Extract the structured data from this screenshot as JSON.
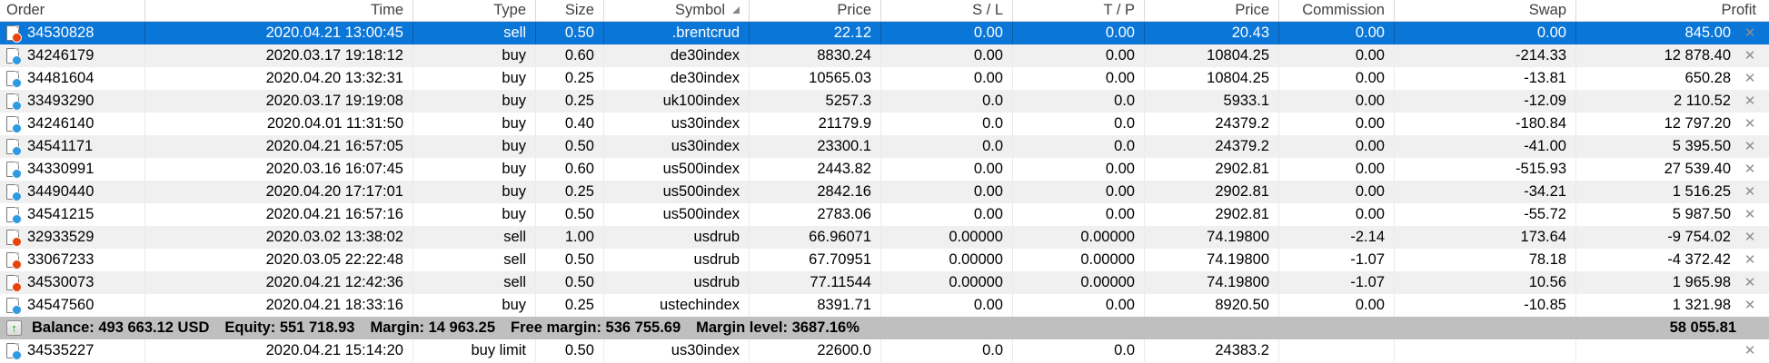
{
  "colors": {
    "selected_row_bg": "#0a76d8",
    "selected_row_text": "#ffffff",
    "alt_row_bg": "#f0f0f0",
    "balance_row_bg": "#bfbfbf",
    "buy_icon_dot": "#2e9ae2",
    "sell_icon_dot": "#e8430b",
    "close_icon": "#8f8f8f"
  },
  "header": {
    "columns": [
      {
        "id": "order",
        "label": "Order"
      },
      {
        "id": "time",
        "label": "Time"
      },
      {
        "id": "type",
        "label": "Type"
      },
      {
        "id": "size",
        "label": "Size"
      },
      {
        "id": "symbol",
        "label": "Symbol",
        "sort": "asc"
      },
      {
        "id": "price_open",
        "label": "Price"
      },
      {
        "id": "sl",
        "label": "S / L"
      },
      {
        "id": "tp",
        "label": "T / P"
      },
      {
        "id": "price_current",
        "label": "Price"
      },
      {
        "id": "commission",
        "label": "Commission"
      },
      {
        "id": "swap",
        "label": "Swap"
      },
      {
        "id": "profit",
        "label": "Profit"
      }
    ]
  },
  "close_glyph": "✕",
  "deposit_glyph": "↑",
  "rows": [
    {
      "order": "34530828",
      "time": "2020.04.21 13:00:45",
      "type": "sell",
      "size": "0.50",
      "symbol": ".brentcrud",
      "price_open": "22.12",
      "sl": "0.00",
      "tp": "0.00",
      "price_current": "20.43",
      "commission": "0.00",
      "swap": "0.00",
      "profit": "845.00",
      "icon": "sell",
      "selected": true
    },
    {
      "order": "34246179",
      "time": "2020.03.17 19:18:12",
      "type": "buy",
      "size": "0.60",
      "symbol": "de30index",
      "price_open": "8830.24",
      "sl": "0.00",
      "tp": "0.00",
      "price_current": "10804.25",
      "commission": "0.00",
      "swap": "-214.33",
      "profit": "12 878.40",
      "icon": "buy",
      "selected": false
    },
    {
      "order": "34481604",
      "time": "2020.04.20 13:32:31",
      "type": "buy",
      "size": "0.25",
      "symbol": "de30index",
      "price_open": "10565.03",
      "sl": "0.00",
      "tp": "0.00",
      "price_current": "10804.25",
      "commission": "0.00",
      "swap": "-13.81",
      "profit": "650.28",
      "icon": "buy",
      "selected": false
    },
    {
      "order": "33493290",
      "time": "2020.03.17 19:19:08",
      "type": "buy",
      "size": "0.25",
      "symbol": "uk100index",
      "price_open": "5257.3",
      "sl": "0.0",
      "tp": "0.0",
      "price_current": "5933.1",
      "commission": "0.00",
      "swap": "-12.09",
      "profit": "2 110.52",
      "icon": "buy",
      "selected": false
    },
    {
      "order": "34246140",
      "time": "2020.04.01 11:31:50",
      "type": "buy",
      "size": "0.40",
      "symbol": "us30index",
      "price_open": "21179.9",
      "sl": "0.0",
      "tp": "0.0",
      "price_current": "24379.2",
      "commission": "0.00",
      "swap": "-180.84",
      "profit": "12 797.20",
      "icon": "buy",
      "selected": false
    },
    {
      "order": "34541171",
      "time": "2020.04.21 16:57:05",
      "type": "buy",
      "size": "0.50",
      "symbol": "us30index",
      "price_open": "23300.1",
      "sl": "0.0",
      "tp": "0.0",
      "price_current": "24379.2",
      "commission": "0.00",
      "swap": "-41.00",
      "profit": "5 395.50",
      "icon": "buy",
      "selected": false
    },
    {
      "order": "34330991",
      "time": "2020.03.16 16:07:45",
      "type": "buy",
      "size": "0.60",
      "symbol": "us500index",
      "price_open": "2443.82",
      "sl": "0.00",
      "tp": "0.00",
      "price_current": "2902.81",
      "commission": "0.00",
      "swap": "-515.93",
      "profit": "27 539.40",
      "icon": "buy",
      "selected": false
    },
    {
      "order": "34490440",
      "time": "2020.04.20 17:17:01",
      "type": "buy",
      "size": "0.25",
      "symbol": "us500index",
      "price_open": "2842.16",
      "sl": "0.00",
      "tp": "0.00",
      "price_current": "2902.81",
      "commission": "0.00",
      "swap": "-34.21",
      "profit": "1 516.25",
      "icon": "buy",
      "selected": false
    },
    {
      "order": "34541215",
      "time": "2020.04.21 16:57:16",
      "type": "buy",
      "size": "0.50",
      "symbol": "us500index",
      "price_open": "2783.06",
      "sl": "0.00",
      "tp": "0.00",
      "price_current": "2902.81",
      "commission": "0.00",
      "swap": "-55.72",
      "profit": "5 987.50",
      "icon": "buy",
      "selected": false
    },
    {
      "order": "32933529",
      "time": "2020.03.02 13:38:02",
      "type": "sell",
      "size": "1.00",
      "symbol": "usdrub",
      "price_open": "66.96071",
      "sl": "0.00000",
      "tp": "0.00000",
      "price_current": "74.19800",
      "commission": "-2.14",
      "swap": "173.64",
      "profit": "-9 754.02",
      "icon": "sell",
      "selected": false
    },
    {
      "order": "33067233",
      "time": "2020.03.05 22:22:48",
      "type": "sell",
      "size": "0.50",
      "symbol": "usdrub",
      "price_open": "67.70951",
      "sl": "0.00000",
      "tp": "0.00000",
      "price_current": "74.19800",
      "commission": "-1.07",
      "swap": "78.18",
      "profit": "-4 372.42",
      "icon": "sell",
      "selected": false
    },
    {
      "order": "34530073",
      "time": "2020.04.21 12:42:36",
      "type": "sell",
      "size": "0.50",
      "symbol": "usdrub",
      "price_open": "77.11544",
      "sl": "0.00000",
      "tp": "0.00000",
      "price_current": "74.19800",
      "commission": "-1.07",
      "swap": "10.56",
      "profit": "1 965.98",
      "icon": "sell",
      "selected": false
    },
    {
      "order": "34547560",
      "time": "2020.04.21 18:33:16",
      "type": "buy",
      "size": "0.25",
      "symbol": "ustechindex",
      "price_open": "8391.71",
      "sl": "0.00",
      "tp": "0.00",
      "price_current": "8920.50",
      "commission": "0.00",
      "swap": "-10.85",
      "profit": "1 321.98",
      "icon": "buy",
      "selected": false
    }
  ],
  "balance": {
    "segments": [
      "Balance: 493 663.12 USD",
      "Equity: 551 718.93",
      "Margin: 14 963.25",
      "Free margin: 536 755.69",
      "Margin level: 3687.16%"
    ],
    "total_profit": "58 055.81"
  },
  "pending": {
    "order": "34535227",
    "time": "2020.04.21 15:14:20",
    "type": "buy limit",
    "size": "0.50",
    "symbol": "us30index",
    "price_open": "22600.0",
    "sl": "0.0",
    "tp": "0.0",
    "price_current": "24383.2",
    "commission": "",
    "swap": "",
    "profit": "",
    "icon": "buy",
    "selected": false
  }
}
